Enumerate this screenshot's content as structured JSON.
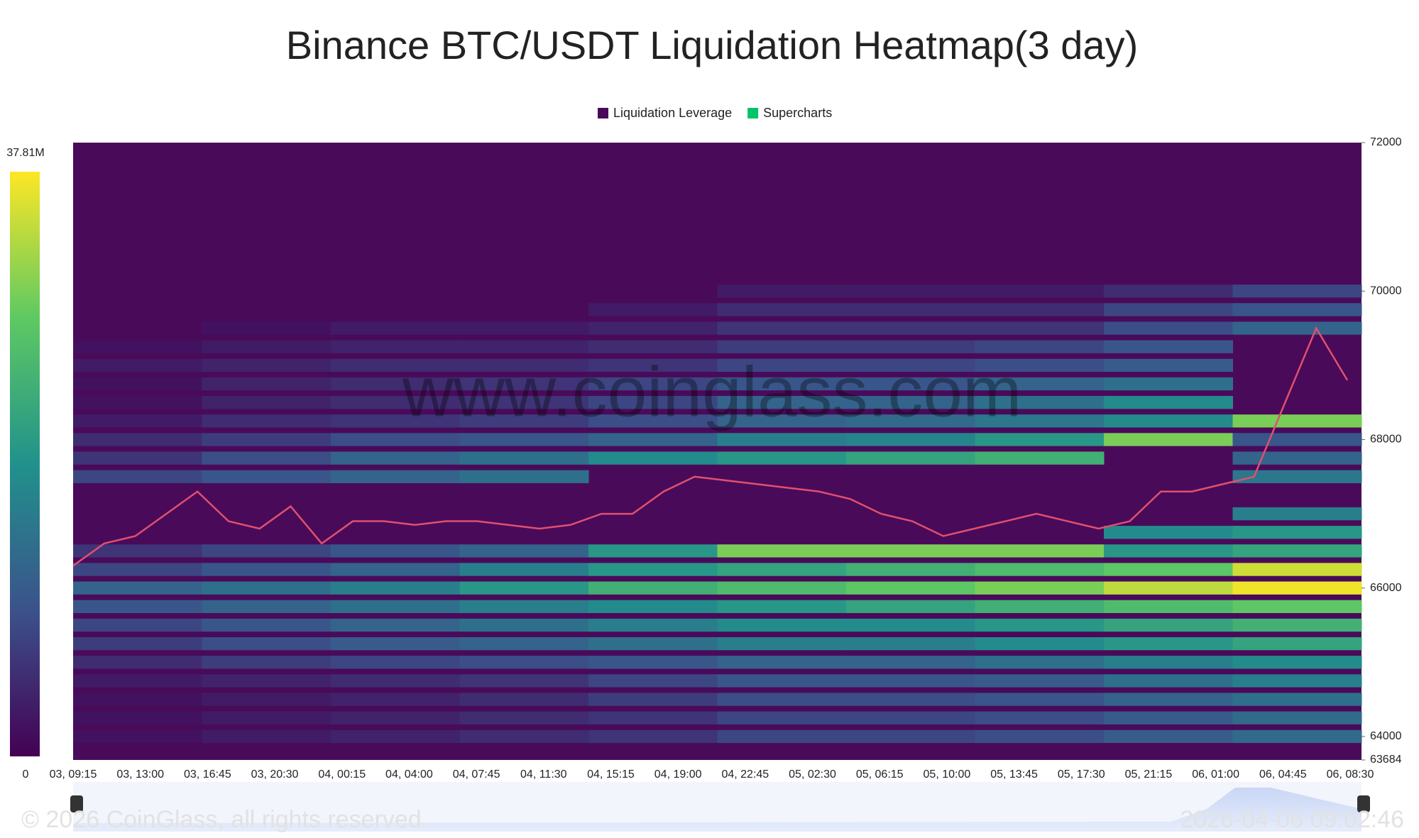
{
  "chart_data": {
    "type": "heatmap",
    "title": "Binance BTC/USDT Liquidation Heatmap(3 day)",
    "watermark": "www.coinglass.com",
    "footer": "© 2026 CoinGlass, all rights reserved",
    "timestamp": "2026-04-06 09:02:46",
    "series": [
      {
        "name": "Liquidation Leverage",
        "color": "#4a0a5a"
      },
      {
        "name": "Supercharts",
        "color": "#00c46a"
      }
    ],
    "categories": [
      "03, 09:15",
      "03, 13:00",
      "03, 16:45",
      "03, 20:30",
      "04, 00:15",
      "04, 04:00",
      "04, 07:45",
      "04, 11:30",
      "04, 15:15",
      "04, 19:00",
      "04, 22:45",
      "05, 02:30",
      "05, 06:15",
      "05, 10:00",
      "05, 13:45",
      "05, 17:30",
      "05, 21:15",
      "06, 01:00",
      "06, 04:45",
      "06, 08:30"
    ],
    "ylim": [
      63684,
      72000
    ],
    "yticks": [
      63684,
      64000,
      66000,
      68000,
      70000,
      72000
    ],
    "zlim": [
      0,
      37.81
    ],
    "zticks": [
      0,
      {
        "value": 37.81,
        "label": "37.81M"
      }
    ],
    "rows": [
      {
        "price": 70000,
        "values": [
          0,
          0,
          0,
          0,
          0,
          3,
          3,
          3,
          5,
          8
        ]
      },
      {
        "price": 69750,
        "values": [
          0,
          0,
          0,
          0,
          3,
          5,
          5,
          5,
          8,
          10
        ]
      },
      {
        "price": 69500,
        "values": [
          0,
          2,
          3,
          3,
          4,
          6,
          6,
          6,
          9,
          12
        ]
      },
      {
        "price": 69250,
        "values": [
          2,
          3,
          4,
          4,
          5,
          7,
          7,
          8,
          10,
          0
        ]
      },
      {
        "price": 69000,
        "values": [
          3,
          4,
          5,
          5,
          6,
          8,
          8,
          9,
          11,
          0
        ]
      },
      {
        "price": 68750,
        "values": [
          2,
          4,
          5,
          6,
          8,
          10,
          10,
          12,
          14,
          0
        ]
      },
      {
        "price": 68500,
        "values": [
          2,
          4,
          5,
          6,
          8,
          12,
          12,
          14,
          18,
          0
        ]
      },
      {
        "price": 68250,
        "values": [
          3,
          5,
          6,
          7,
          9,
          12,
          13,
          15,
          18,
          30
        ]
      },
      {
        "price": 68000,
        "values": [
          5,
          7,
          9,
          10,
          12,
          16,
          17,
          20,
          30,
          10
        ]
      },
      {
        "price": 67750,
        "values": [
          6,
          9,
          12,
          14,
          18,
          20,
          22,
          24,
          0,
          12
        ]
      },
      {
        "price": 67500,
        "values": [
          8,
          10,
          12,
          14,
          0,
          0,
          0,
          0,
          0,
          15
        ]
      },
      {
        "price": 67250,
        "values": [
          0,
          0,
          0,
          0,
          0,
          0,
          0,
          0,
          0,
          0
        ]
      },
      {
        "price": 67000,
        "values": [
          0,
          0,
          0,
          0,
          0,
          0,
          0,
          0,
          0,
          16
        ]
      },
      {
        "price": 66750,
        "values": [
          0,
          0,
          0,
          0,
          0,
          0,
          0,
          0,
          18,
          20
        ]
      },
      {
        "price": 66500,
        "values": [
          6,
          8,
          10,
          12,
          20,
          30,
          30,
          30,
          20,
          22
        ]
      },
      {
        "price": 66250,
        "values": [
          8,
          10,
          12,
          16,
          20,
          22,
          24,
          26,
          28,
          35
        ]
      },
      {
        "price": 66000,
        "values": [
          12,
          14,
          16,
          20,
          24,
          26,
          28,
          30,
          34,
          37
        ]
      },
      {
        "price": 65750,
        "values": [
          10,
          12,
          14,
          16,
          18,
          20,
          22,
          24,
          26,
          28
        ]
      },
      {
        "price": 65500,
        "values": [
          8,
          10,
          12,
          14,
          16,
          18,
          18,
          20,
          22,
          24
        ]
      },
      {
        "price": 65250,
        "values": [
          7,
          9,
          11,
          12,
          14,
          16,
          16,
          18,
          20,
          22
        ]
      },
      {
        "price": 65000,
        "values": [
          5,
          7,
          8,
          9,
          10,
          12,
          12,
          14,
          16,
          18
        ]
      },
      {
        "price": 64750,
        "values": [
          3,
          4,
          5,
          6,
          8,
          10,
          10,
          11,
          14,
          16
        ]
      },
      {
        "price": 64500,
        "values": [
          2,
          3,
          4,
          5,
          7,
          9,
          9,
          10,
          12,
          14
        ]
      },
      {
        "price": 64250,
        "values": [
          2,
          3,
          4,
          5,
          6,
          8,
          8,
          9,
          11,
          13
        ]
      },
      {
        "price": 64000,
        "values": [
          2,
          3,
          4,
          5,
          6,
          8,
          8,
          9,
          11,
          13
        ]
      }
    ],
    "price_line": {
      "color": "#e0506e",
      "values": [
        66300,
        66600,
        66700,
        67000,
        67300,
        66900,
        66800,
        67100,
        66600,
        66900,
        66900,
        66850,
        66900,
        66900,
        66850,
        66800,
        66850,
        67000,
        67000,
        67300,
        67500,
        67450,
        67400,
        67350,
        67300,
        67200,
        67000,
        66900,
        66700,
        66800,
        66900,
        67000,
        66900,
        66800,
        66900,
        67300,
        67300,
        67400,
        67500,
        68500,
        69500,
        68800
      ]
    }
  }
}
